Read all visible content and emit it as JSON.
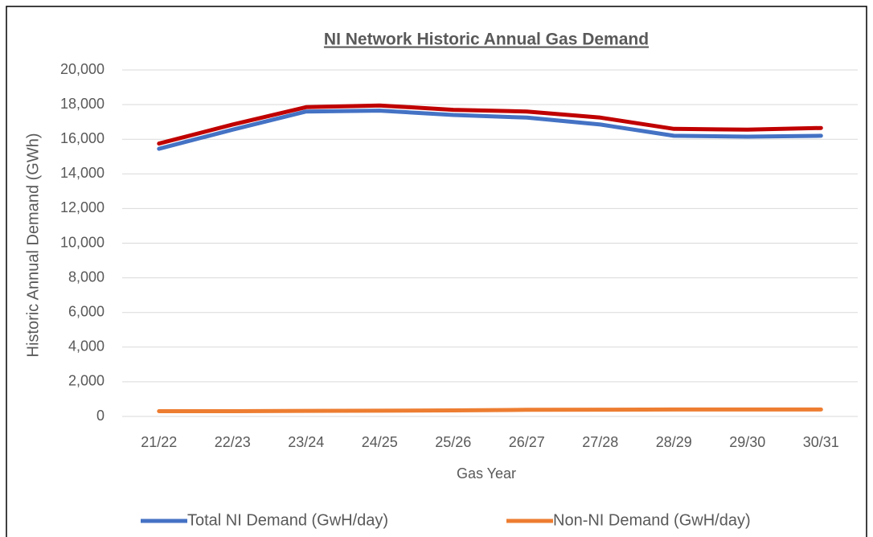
{
  "chart_data": {
    "type": "line",
    "title": "NI Network Historic Annual Gas Demand",
    "x_label": "Gas Year",
    "y_label": "Historic Annual Demand (GWh)",
    "categories": [
      "21/22",
      "22/23",
      "23/24",
      "24/25",
      "25/26",
      "26/27",
      "27/28",
      "28/29",
      "29/30",
      "30/31"
    ],
    "series": [
      {
        "color": "#c00000",
        "values": [
          15750,
          16850,
          17850,
          17950,
          17700,
          17600,
          17250,
          16600,
          16550,
          16650
        ]
      },
      {
        "name": "Total NI Demand (GwH/day)",
        "color": "#4472c4",
        "values": [
          15450,
          16550,
          17600,
          17650,
          17400,
          17250,
          16850,
          16200,
          16150,
          16200
        ]
      },
      {
        "name": "Non-NI Demand (GwH/day)",
        "color": "#ed7d31",
        "values": [
          300,
          300,
          320,
          330,
          350,
          380,
          390,
          400,
          400,
          400
        ]
      }
    ],
    "ylim": [
      0,
      20000
    ],
    "yticks": [
      0,
      {
        "value": 2000,
        "label": "2,000"
      },
      {
        "value": 4000,
        "label": "4,000"
      },
      {
        "value": 6000,
        "label": "6,000"
      },
      {
        "value": 8000,
        "label": "8,000"
      },
      {
        "value": 10000,
        "label": "10,000"
      },
      {
        "value": 12000,
        "label": "12,000"
      },
      {
        "value": 14000,
        "label": "14,000"
      },
      {
        "value": 16000,
        "label": "16,000"
      },
      {
        "value": 18000,
        "label": "18,000"
      },
      {
        "value": 20000,
        "label": "20,000"
      }
    ],
    "grid": true,
    "legend": "bottom"
  }
}
